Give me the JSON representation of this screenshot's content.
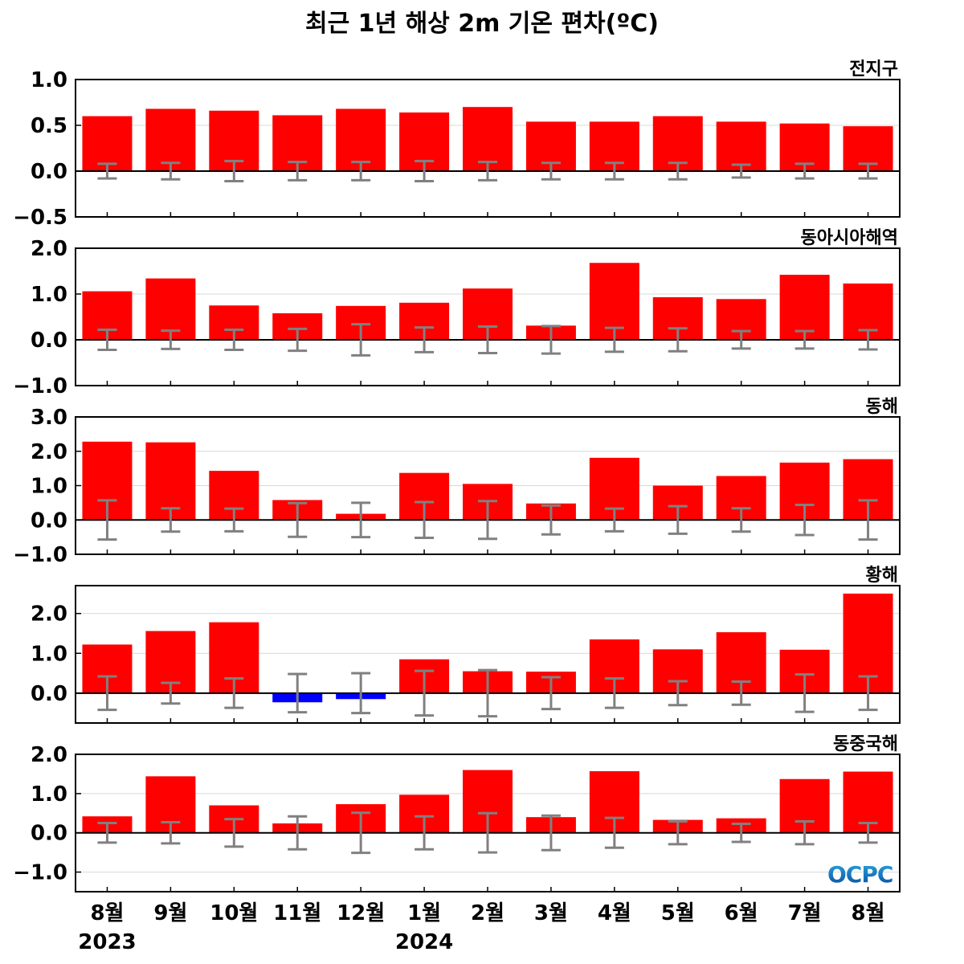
{
  "title": "최근 1년 해상 2m 기온 편차(ºC)",
  "logo": "OCPC",
  "colors": {
    "positive": "#ff0000",
    "negative": "#0000ff",
    "errorbar": "#808080",
    "zeroline": "#000000",
    "grid": "#d9d9d9"
  },
  "chart_data": {
    "type": "bar",
    "categories": [
      "8월",
      "9월",
      "10월",
      "11월",
      "12월",
      "1월",
      "2월",
      "3월",
      "4월",
      "5월",
      "6월",
      "7월",
      "8월"
    ],
    "year_labels": [
      {
        "index": 0,
        "label": "2023"
      },
      {
        "index": 5,
        "label": "2024"
      }
    ],
    "panels": [
      {
        "name": "전지구",
        "ylim": [
          -0.5,
          1.0
        ],
        "yticks": [
          -0.5,
          0.0,
          0.5,
          1.0
        ],
        "ytick_labels": [
          "−0.5",
          "0.0",
          "0.5",
          "1.0"
        ],
        "values": [
          0.6,
          0.68,
          0.66,
          0.61,
          0.68,
          0.64,
          0.7,
          0.54,
          0.54,
          0.6,
          0.54,
          0.52,
          0.49
        ],
        "error": [
          0.08,
          0.09,
          0.11,
          0.1,
          0.1,
          0.11,
          0.1,
          0.09,
          0.09,
          0.09,
          0.07,
          0.08,
          0.08
        ]
      },
      {
        "name": "동아시아해역",
        "ylim": [
          -1.0,
          2.0
        ],
        "yticks": [
          -1.0,
          0.0,
          1.0,
          2.0
        ],
        "ytick_labels": [
          "−1.0",
          "0.0",
          "1.0",
          "2.0"
        ],
        "values": [
          1.06,
          1.34,
          0.75,
          0.58,
          0.74,
          0.81,
          1.12,
          0.31,
          1.68,
          0.93,
          0.89,
          1.42,
          1.23
        ],
        "error": [
          0.22,
          0.2,
          0.22,
          0.24,
          0.34,
          0.27,
          0.29,
          0.3,
          0.26,
          0.25,
          0.19,
          0.19,
          0.21
        ]
      },
      {
        "name": "동해",
        "ylim": [
          -1.0,
          3.0
        ],
        "yticks": [
          -1.0,
          0.0,
          1.0,
          2.0,
          3.0
        ],
        "ytick_labels": [
          "−1.0",
          "0.0",
          "1.0",
          "2.0",
          "3.0"
        ],
        "values": [
          2.28,
          2.26,
          1.43,
          0.58,
          0.18,
          1.37,
          1.05,
          0.48,
          1.81,
          1.0,
          1.28,
          1.67,
          1.77
        ],
        "error": [
          0.57,
          0.34,
          0.33,
          0.49,
          0.5,
          0.52,
          0.55,
          0.42,
          0.33,
          0.4,
          0.34,
          0.44,
          0.57
        ]
      },
      {
        "name": "황해",
        "ylim": [
          -0.75,
          2.7
        ],
        "yticks": [
          0.0,
          1.0,
          2.0
        ],
        "ytick_labels": [
          "0.0",
          "1.0",
          "2.0"
        ],
        "values": [
          1.22,
          1.56,
          1.78,
          -0.23,
          -0.15,
          0.85,
          0.55,
          0.54,
          1.35,
          1.1,
          1.53,
          1.09,
          2.5
        ],
        "error": [
          0.42,
          0.26,
          0.37,
          0.48,
          0.5,
          0.56,
          0.58,
          0.4,
          0.37,
          0.3,
          0.29,
          0.47,
          0.42
        ]
      },
      {
        "name": "동중국해",
        "ylim": [
          -1.5,
          2.0
        ],
        "yticks": [
          -1.0,
          0.0,
          1.0,
          2.0
        ],
        "ytick_labels": [
          "−1.0",
          "0.0",
          "1.0",
          "2.0"
        ],
        "values": [
          0.42,
          1.44,
          0.7,
          0.24,
          0.73,
          0.97,
          1.6,
          0.4,
          1.57,
          0.33,
          0.37,
          1.37,
          1.56
        ],
        "error": [
          0.25,
          0.27,
          0.35,
          0.42,
          0.51,
          0.42,
          0.5,
          0.44,
          0.38,
          0.29,
          0.23,
          0.29,
          0.25
        ]
      }
    ]
  }
}
